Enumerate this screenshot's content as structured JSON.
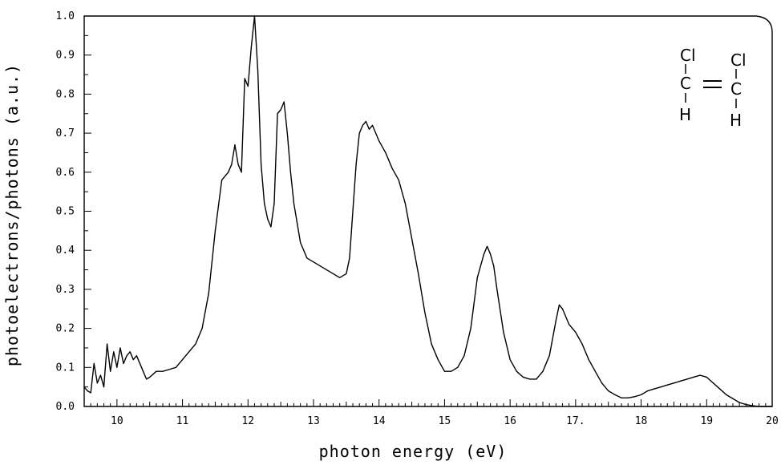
{
  "chart_data": {
    "type": "line",
    "title": "",
    "xlabel": "photon energy   (eV)",
    "ylabel": "photoelectrons/photons  (a.u.)",
    "xlim": [
      9.5,
      20
    ],
    "ylim": [
      0.0,
      1.0
    ],
    "x_ticks": [
      "10",
      "11",
      "12",
      "13",
      "14",
      "15",
      "16",
      "17.",
      "18",
      "19",
      "20"
    ],
    "y_ticks": [
      "0.0",
      "0.1",
      "0.2",
      "0.3",
      "0.4",
      "0.5",
      "0.6",
      "0.7",
      "0.8",
      "0.9",
      "1.0"
    ],
    "grid": false,
    "legend": "none",
    "line_color": "#000000",
    "series": [
      {
        "x": [
          9.5,
          9.55,
          9.6,
          9.65,
          9.7,
          9.75,
          9.8,
          9.85,
          9.9,
          9.95,
          10.0,
          10.05,
          10.1,
          10.15,
          10.2,
          10.25,
          10.3,
          10.35,
          10.4,
          10.45,
          10.5,
          10.6,
          10.7,
          10.8,
          10.9,
          11.0,
          11.1,
          11.2,
          11.3,
          11.4,
          11.5,
          11.6,
          11.7,
          11.75,
          11.8,
          11.85,
          11.9,
          11.95,
          12.0,
          12.05,
          12.1,
          12.15,
          12.2,
          12.25,
          12.3,
          12.35,
          12.4,
          12.45,
          12.5,
          12.55,
          12.6,
          12.65,
          12.7,
          12.8,
          12.9,
          13.0,
          13.1,
          13.2,
          13.3,
          13.4,
          13.5,
          13.55,
          13.6,
          13.65,
          13.7,
          13.75,
          13.8,
          13.85,
          13.9,
          13.95,
          14.0,
          14.1,
          14.2,
          14.3,
          14.4,
          14.5,
          14.6,
          14.7,
          14.8,
          14.9,
          15.0,
          15.1,
          15.2,
          15.3,
          15.4,
          15.5,
          15.6,
          15.65,
          15.7,
          15.75,
          15.8,
          15.9,
          16.0,
          16.1,
          16.2,
          16.3,
          16.4,
          16.5,
          16.6,
          16.7,
          16.75,
          16.8,
          16.85,
          16.9,
          16.95,
          17.0,
          17.05,
          17.1,
          17.2,
          17.3,
          17.4,
          17.5,
          17.6,
          17.7,
          17.8,
          17.9,
          18.0,
          18.1,
          18.2,
          18.3,
          18.4,
          18.5,
          18.6,
          18.7,
          18.8,
          18.9,
          19.0,
          19.1,
          19.2,
          19.3,
          19.4,
          19.5,
          19.6,
          19.7,
          19.8,
          19.9,
          20.0
        ],
        "y": [
          0.05,
          0.04,
          0.035,
          0.11,
          0.06,
          0.08,
          0.05,
          0.16,
          0.09,
          0.14,
          0.1,
          0.15,
          0.11,
          0.13,
          0.14,
          0.12,
          0.13,
          0.11,
          0.09,
          0.07,
          0.075,
          0.09,
          0.09,
          0.095,
          0.1,
          0.12,
          0.14,
          0.16,
          0.2,
          0.29,
          0.45,
          0.58,
          0.6,
          0.62,
          0.67,
          0.62,
          0.6,
          0.84,
          0.82,
          0.92,
          1.0,
          0.86,
          0.62,
          0.52,
          0.48,
          0.46,
          0.52,
          0.75,
          0.76,
          0.78,
          0.7,
          0.6,
          0.52,
          0.42,
          0.38,
          0.37,
          0.36,
          0.35,
          0.34,
          0.33,
          0.34,
          0.38,
          0.5,
          0.62,
          0.7,
          0.72,
          0.73,
          0.71,
          0.72,
          0.7,
          0.68,
          0.65,
          0.61,
          0.58,
          0.52,
          0.43,
          0.34,
          0.24,
          0.16,
          0.12,
          0.09,
          0.09,
          0.1,
          0.13,
          0.2,
          0.33,
          0.39,
          0.41,
          0.39,
          0.36,
          0.3,
          0.19,
          0.12,
          0.09,
          0.075,
          0.07,
          0.07,
          0.09,
          0.13,
          0.22,
          0.26,
          0.25,
          0.23,
          0.21,
          0.2,
          0.19,
          0.175,
          0.16,
          0.12,
          0.09,
          0.06,
          0.04,
          0.03,
          0.022,
          0.022,
          0.025,
          0.03,
          0.04,
          0.045,
          0.05,
          0.055,
          0.06,
          0.065,
          0.07,
          0.075,
          0.08,
          0.075,
          0.06,
          0.045,
          0.03,
          0.02,
          0.01,
          0.005,
          0.002,
          0.0,
          0.0,
          0.0
        ]
      }
    ]
  },
  "molecule": {
    "left_top": "Cl",
    "left_mid": "C",
    "left_bottom": "H",
    "right_top": "Cl",
    "right_mid": "C",
    "right_bottom": "H",
    "bond": "="
  }
}
